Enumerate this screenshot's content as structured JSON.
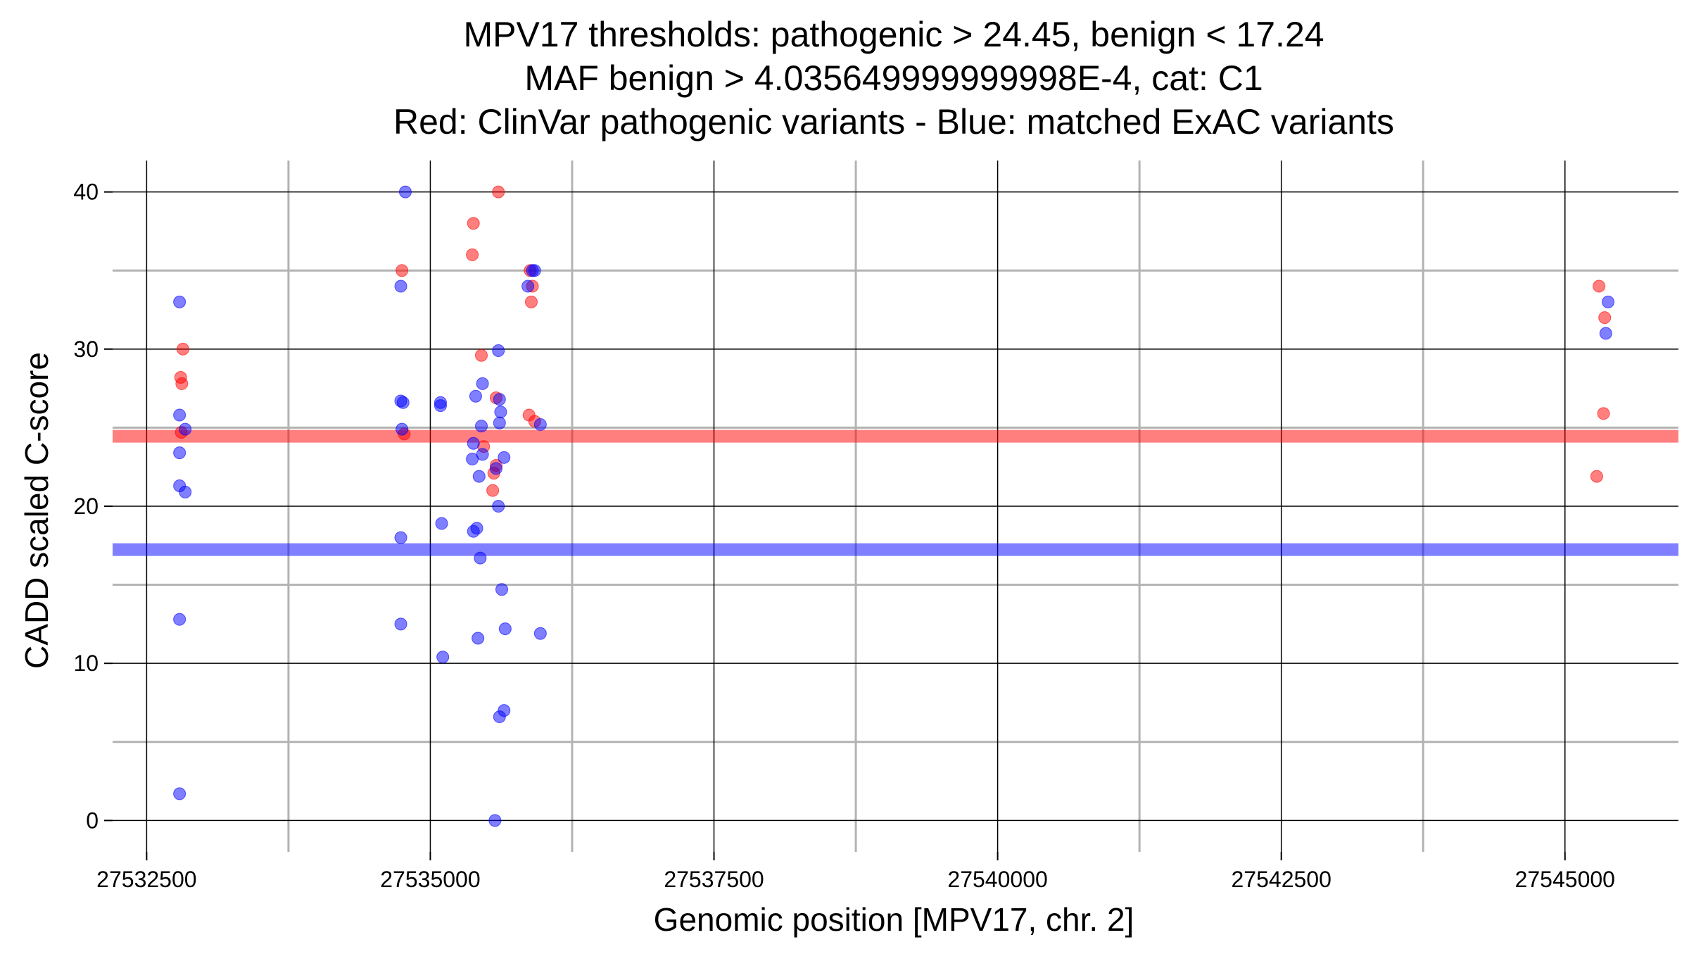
{
  "chart_data": {
    "type": "scatter",
    "title_lines": [
      "MPV17 thresholds: pathogenic > 24.45, benign < 17.24",
      "MAF benign > 4.035649999999998E-4, cat: C1",
      "Red: ClinVar pathogenic variants - Blue: matched ExAC variants"
    ],
    "xlabel": "Genomic position [MPV17, chr. 2]",
    "ylabel": "CADD scaled C-score",
    "xlim": [
      27532200,
      27546000
    ],
    "ylim": [
      -2,
      42
    ],
    "x_major_ticks": [
      27532500,
      27535000,
      27537500,
      27540000,
      27542500,
      27545000
    ],
    "x_tick_labels": [
      "27532500",
      "27535000",
      "27537500",
      "27540000",
      "27542500",
      "27545000"
    ],
    "x_minor_gridlines": [
      27533750,
      27536250,
      27538750,
      27541250,
      27543750
    ],
    "y_major_ticks": [
      0,
      10,
      20,
      30,
      40
    ],
    "y_tick_labels": [
      "0",
      "10",
      "20",
      "30",
      "40"
    ],
    "y_minor_gridlines": [
      5,
      15,
      25,
      35
    ],
    "thresholds": [
      {
        "name": "pathogenic",
        "value": 24.45,
        "color": "#ff0000"
      },
      {
        "name": "benign",
        "value": 17.24,
        "color": "#0000ff"
      }
    ],
    "series": [
      {
        "name": "ClinVar pathogenic variants",
        "color": "#ff0000",
        "points": [
          [
            27532820,
            30
          ],
          [
            27532800,
            28.2
          ],
          [
            27532810,
            27.8
          ],
          [
            27532805,
            24.7
          ],
          [
            27534750,
            35
          ],
          [
            27534770,
            24.6
          ],
          [
            27535380,
            38
          ],
          [
            27535370,
            36
          ],
          [
            27535600,
            40
          ],
          [
            27535450,
            29.6
          ],
          [
            27535580,
            26.9
          ],
          [
            27535470,
            23.8
          ],
          [
            27535580,
            22.6
          ],
          [
            27535560,
            22.1
          ],
          [
            27535550,
            21.0
          ],
          [
            27535880,
            35
          ],
          [
            27535900,
            34
          ],
          [
            27535890,
            33
          ],
          [
            27535870,
            25.8
          ],
          [
            27535920,
            25.4
          ],
          [
            27545300,
            34
          ],
          [
            27545350,
            32
          ],
          [
            27545340,
            25.9
          ],
          [
            27545280,
            21.9
          ]
        ]
      },
      {
        "name": "matched ExAC variants",
        "color": "#0000ff",
        "points": [
          [
            27532790,
            33
          ],
          [
            27532790,
            25.8
          ],
          [
            27532840,
            24.9
          ],
          [
            27532790,
            23.4
          ],
          [
            27532790,
            21.3
          ],
          [
            27532840,
            20.9
          ],
          [
            27532790,
            12.8
          ],
          [
            27532790,
            1.7
          ],
          [
            27534780,
            40
          ],
          [
            27534740,
            34
          ],
          [
            27534740,
            26.7
          ],
          [
            27534760,
            26.6
          ],
          [
            27534750,
            24.9
          ],
          [
            27534740,
            18.0
          ],
          [
            27534740,
            12.5
          ],
          [
            27535090,
            26.6
          ],
          [
            27535090,
            26.4
          ],
          [
            27535100,
            18.9
          ],
          [
            27535110,
            10.4
          ],
          [
            27535400,
            27.0
          ],
          [
            27535460,
            27.8
          ],
          [
            27535450,
            25.1
          ],
          [
            27535380,
            24.0
          ],
          [
            27535370,
            23.0
          ],
          [
            27535460,
            23.3
          ],
          [
            27535430,
            21.9
          ],
          [
            27535380,
            18.4
          ],
          [
            27535410,
            18.6
          ],
          [
            27535440,
            16.7
          ],
          [
            27535420,
            11.6
          ],
          [
            27535600,
            29.9
          ],
          [
            27535610,
            26.8
          ],
          [
            27535620,
            26.0
          ],
          [
            27535610,
            25.3
          ],
          [
            27535650,
            23.1
          ],
          [
            27535580,
            22.4
          ],
          [
            27535600,
            20.0
          ],
          [
            27535630,
            14.7
          ],
          [
            27535660,
            12.2
          ],
          [
            27535650,
            7.0
          ],
          [
            27535610,
            6.6
          ],
          [
            27535570,
            0
          ],
          [
            27535860,
            34
          ],
          [
            27535900,
            35
          ],
          [
            27535920,
            35
          ],
          [
            27535970,
            25.2
          ],
          [
            27535970,
            11.9
          ],
          [
            27545380,
            33
          ],
          [
            27545360,
            31
          ]
        ]
      }
    ]
  }
}
